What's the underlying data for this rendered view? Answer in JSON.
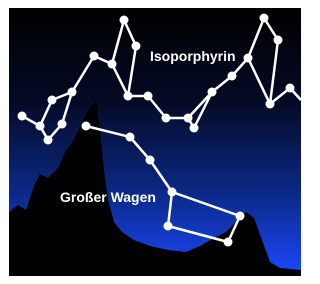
{
  "labels": {
    "molecule": "Isoporphyrin",
    "constellation": "Großer Wagen"
  }
}
